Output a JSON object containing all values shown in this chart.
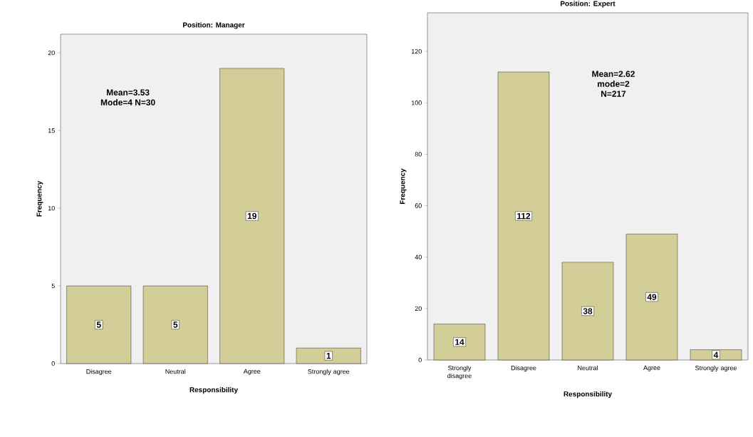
{
  "chart_data": [
    {
      "type": "bar",
      "title": "Position: Manager",
      "xlabel": "Responsibility",
      "ylabel": "Frequency",
      "categories": [
        "Disagree",
        "Neutral",
        "Agree",
        "Strongly agree"
      ],
      "values": [
        5,
        5,
        19,
        1
      ],
      "color": "#d3ce97",
      "ylim": [
        0,
        21.2
      ],
      "yticks": [
        0,
        5,
        10,
        15,
        20
      ],
      "data_labels": true,
      "annotations": [
        "Mean=3.53",
        "Mode=4 N=30"
      ]
    },
    {
      "type": "bar",
      "title": "Position: Expert",
      "xlabel": "Responsibility",
      "ylabel": "Frequency",
      "categories": [
        "Strongly disagree",
        "Disagree",
        "Neutral",
        "Agree",
        "Strongly agree"
      ],
      "values": [
        14,
        112,
        38,
        49,
        4
      ],
      "color": "#d3ce97",
      "ylim": [
        0,
        135
      ],
      "yticks": [
        0,
        20,
        40,
        60,
        80,
        100,
        120
      ],
      "data_labels": true,
      "annotations": [
        "Mean=2.62",
        "mode=2",
        "N=217"
      ]
    }
  ]
}
